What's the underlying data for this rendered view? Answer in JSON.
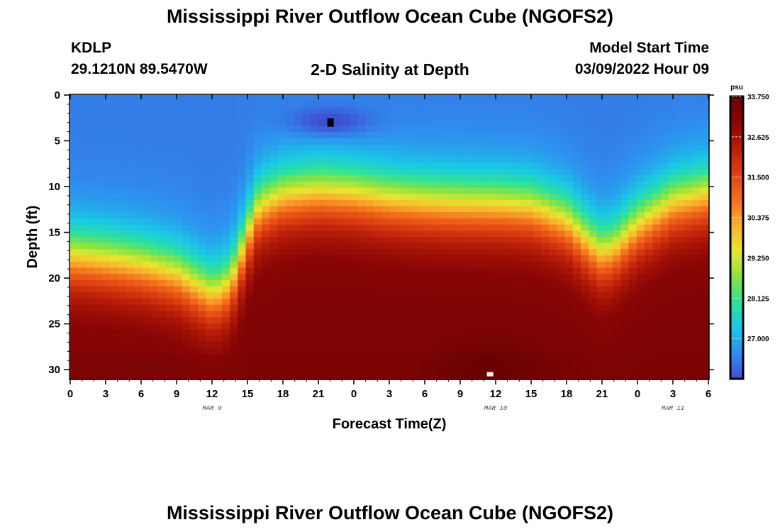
{
  "header": {
    "title": "Mississippi River Outflow Ocean Cube (NGOFS2)",
    "station": "KDLP",
    "coords": "29.1210N  89.5470W",
    "subtitle": "2-D Salinity at Depth",
    "model_start_label": "Model Start Time",
    "model_start_value": "03/09/2022 Hour 09"
  },
  "footer": {
    "title": "Mississippi River Outflow Ocean Cube (NGOFS2)"
  },
  "chart_data": {
    "type": "heatmap",
    "title": "2-D Salinity at Depth",
    "xlabel": "Forecast Time(Z)",
    "ylabel": "Depth (ft)",
    "x_ticks": [
      "0",
      "3",
      "6",
      "9",
      "12",
      "15",
      "18",
      "21",
      "0",
      "3",
      "6",
      "9",
      "12",
      "15",
      "18",
      "21",
      "0",
      "3",
      "6"
    ],
    "x_range_hours": [
      0,
      54
    ],
    "date_labels": [
      {
        "text": "MAR 9",
        "hour": 12
      },
      {
        "text": "MAR 10",
        "hour": 36
      },
      {
        "text": "MAR 11",
        "hour": 51
      }
    ],
    "y_ticks": [
      0,
      5,
      10,
      15,
      20,
      25,
      30
    ],
    "y_range_ft": [
      0,
      31
    ],
    "y_inverted": true,
    "colorbar": {
      "unit": "psu",
      "min": 25.875,
      "max": 33.75,
      "labels": [
        "33.750",
        "32.625",
        "31.500",
        "30.375",
        "29.250",
        "28.125",
        "27.000"
      ],
      "label_values": [
        33.75,
        32.625,
        31.5,
        30.375,
        29.25,
        28.125,
        27.0
      ],
      "colors": [
        "#3f4fd2",
        "#2f8ef0",
        "#19c8e6",
        "#2ee29a",
        "#8de33e",
        "#e9e52f",
        "#f9b02d",
        "#f46d1c",
        "#de4112",
        "#b81d08",
        "#8a0505",
        "#6b0202"
      ]
    },
    "boundary_hours": [
      0,
      3,
      6,
      9,
      11,
      12,
      13,
      14,
      15,
      16,
      18,
      21,
      24,
      27,
      30,
      33,
      36,
      39,
      42,
      44,
      45,
      46,
      48,
      51,
      54
    ],
    "boundary_depth_ft": [
      17.8,
      18.2,
      18.8,
      19.8,
      21.3,
      22.0,
      21.5,
      19.5,
      15.5,
      12.5,
      11.2,
      10.7,
      11.0,
      11.6,
      11.9,
      12.1,
      12.2,
      12.5,
      14.0,
      16.5,
      17.5,
      17.0,
      14.5,
      12.0,
      11.0
    ],
    "notes": {
      "surface_salinity_psu": 26.4,
      "bottom_salinity_psu": 33.3,
      "fresh_core": {
        "hour": 22,
        "depth_ft": 3,
        "min_psu": 25.9
      },
      "salty_core": {
        "hour": 35.5,
        "depth_ft": 30.5,
        "max_psu": 33.7
      }
    }
  }
}
